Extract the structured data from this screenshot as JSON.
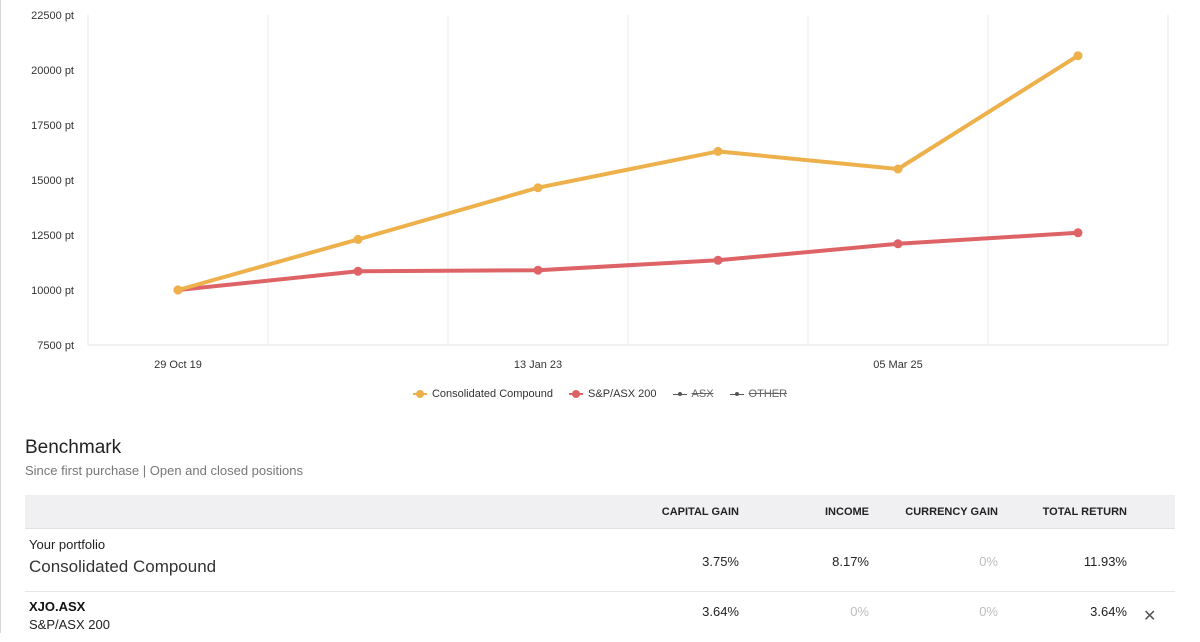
{
  "chart_data": {
    "type": "line",
    "x": [
      "29 Oct 19",
      "",
      "13 Jan 23",
      "",
      "05 Mar 25",
      ""
    ],
    "x_tick_labels": [
      "29 Oct 19",
      "13 Jan 23",
      "05 Mar 25"
    ],
    "ylim": [
      7500,
      22500
    ],
    "y_ticks": [
      7500,
      10000,
      12500,
      15000,
      17500,
      20000,
      22500
    ],
    "y_tick_labels": [
      "7500 pt",
      "10000 pt",
      "12500 pt",
      "15000 pt",
      "17500 pt",
      "20000 pt",
      "22500 pt"
    ],
    "grid": "vertical",
    "series": [
      {
        "name": "Consolidated Compound",
        "color": "#edb04b",
        "values": [
          10000,
          12300,
          14650,
          16300,
          15500,
          20650
        ]
      },
      {
        "name": "S&P/ASX 200",
        "color": "#dd6366",
        "values": [
          10000,
          10850,
          10900,
          11350,
          12100,
          12600
        ]
      }
    ],
    "legend": [
      {
        "label": "Consolidated Compound",
        "color": "#edb04b",
        "hidden": false
      },
      {
        "label": "S&P/ASX 200",
        "color": "#dd6366",
        "hidden": false
      },
      {
        "label": "ASX",
        "color": "#555555",
        "hidden": true
      },
      {
        "label": "OTHER",
        "color": "#555555",
        "hidden": true
      }
    ]
  },
  "benchmark": {
    "title": "Benchmark",
    "subtitle": "Since first purchase | Open and closed positions",
    "columns": [
      "CAPITAL GAIN",
      "INCOME",
      "CURRENCY GAIN",
      "TOTAL RETURN"
    ],
    "portfolio": {
      "label": "Your portfolio",
      "name": "Consolidated Compound",
      "capital_gain": "3.75%",
      "income": "8.17%",
      "currency_gain": "0%",
      "total_return": "11.93%"
    },
    "index": {
      "code": "XJO.ASX",
      "name": "S&P/ASX 200",
      "capital_gain": "3.64%",
      "income": "0%",
      "currency_gain": "0%",
      "total_return": "3.64%",
      "remove_glyph": "✕"
    }
  }
}
